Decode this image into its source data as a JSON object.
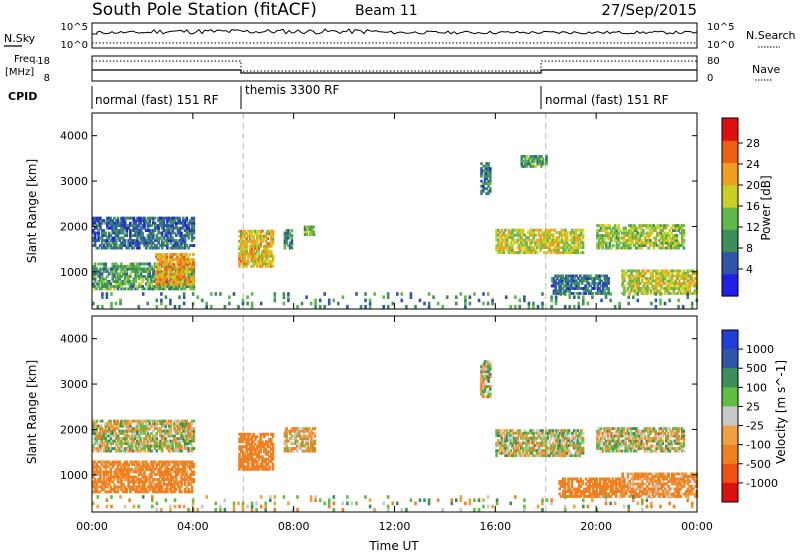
{
  "header": {
    "title": "South Pole Station (fitACF)",
    "beam": "Beam 11",
    "date": "27/Sep/2015"
  },
  "nsky_panel": {
    "left_label": "N.Sky",
    "right_label": "N.Search",
    "left_ticks": [
      "10^5",
      "10^0"
    ],
    "right_ticks": [
      "10^5",
      "10^0"
    ]
  },
  "freq_panel": {
    "left_label_line1": "Freq.",
    "left_label_line2": "[MHz]",
    "right_label": "Nave",
    "left_ticks": [
      "18",
      "8"
    ],
    "right_ticks": [
      "80",
      "0"
    ]
  },
  "cpid": {
    "label": "CPID",
    "segments": [
      {
        "text": "normal (fast) 151 RF",
        "start_hour": 0,
        "end_hour": 6
      },
      {
        "text": "themis 3300 RF",
        "start_hour": 6,
        "end_hour": 18
      },
      {
        "text": "normal (fast) 151 RF",
        "start_hour": 18,
        "end_hour": 24
      }
    ]
  },
  "colors": {
    "power_scale": [
      "#1f1fe6",
      "#2f56a8",
      "#3c8f5a",
      "#5fb84a",
      "#c8d020",
      "#f0a020",
      "#f06010",
      "#e01010"
    ],
    "velocity_scale": [
      "#e01010",
      "#f05010",
      "#f08020",
      "#f0a040",
      "#c8c8c8",
      "#5fc040",
      "#3c8f5a",
      "#2f56a8",
      "#1f3fd8"
    ]
  },
  "chart_data": [
    {
      "type": "heatmap",
      "panel": "power",
      "ylabel": "Slant Range [km]",
      "ylim": [
        180,
        4500
      ],
      "yticks": [
        "1000",
        "2000",
        "3000",
        "4000"
      ],
      "xlim": [
        0,
        24
      ],
      "colorbar_label": "Power [dB]",
      "colorbar_ticks": [
        "28",
        "24",
        "20",
        "16",
        "12",
        "8",
        "4"
      ],
      "regions": [
        {
          "t": [
            0.0,
            4.0
          ],
          "r": [
            600,
            1200
          ],
          "v": 14
        },
        {
          "t": [
            0.0,
            4.0
          ],
          "r": [
            1500,
            2200
          ],
          "v": 9
        },
        {
          "t": [
            2.5,
            4.0
          ],
          "r": [
            700,
            1400
          ],
          "v": 24
        },
        {
          "t": [
            5.8,
            7.2
          ],
          "r": [
            1100,
            1900
          ],
          "v": 22
        },
        {
          "t": [
            7.6,
            7.9
          ],
          "r": [
            1500,
            1900
          ],
          "v": 12
        },
        {
          "t": [
            8.4,
            8.8
          ],
          "r": [
            1800,
            2000
          ],
          "v": 14
        },
        {
          "t": [
            15.4,
            15.8
          ],
          "r": [
            2700,
            3400
          ],
          "v": 10
        },
        {
          "t": [
            16.0,
            19.5
          ],
          "r": [
            1400,
            1900
          ],
          "v": 20
        },
        {
          "t": [
            17.0,
            18.0
          ],
          "r": [
            3300,
            3550
          ],
          "v": 14
        },
        {
          "t": [
            20.0,
            23.5
          ],
          "r": [
            1500,
            2000
          ],
          "v": 18
        },
        {
          "t": [
            18.2,
            20.5
          ],
          "r": [
            500,
            900
          ],
          "v": 10
        },
        {
          "t": [
            21.0,
            24.0
          ],
          "r": [
            500,
            1000
          ],
          "v": 20
        },
        {
          "t": [
            0.0,
            24.0
          ],
          "r": [
            200,
            500
          ],
          "v": 12
        }
      ]
    },
    {
      "type": "heatmap",
      "panel": "velocity",
      "ylabel": "Slant Range [km]",
      "ylim": [
        180,
        4500
      ],
      "yticks": [
        "1000",
        "2000",
        "3000",
        "4000"
      ],
      "xlim": [
        0,
        24
      ],
      "xlabel": "Time UT",
      "xticks": [
        "00:00",
        "04:00",
        "08:00",
        "12:00",
        "16:00",
        "20:00",
        "00:00"
      ],
      "colorbar_label": "Velocity [m s^-1]",
      "colorbar_ticks": [
        "1000",
        "500",
        "100",
        "25",
        "-25",
        "-100",
        "-500",
        "-1000"
      ],
      "regions": [
        {
          "t": [
            0.0,
            4.0
          ],
          "r": [
            600,
            1300
          ],
          "v": -200
        },
        {
          "t": [
            0.0,
            4.0
          ],
          "r": [
            1500,
            2200
          ],
          "v": 0
        },
        {
          "t": [
            5.8,
            7.2
          ],
          "r": [
            1100,
            1900
          ],
          "v": -300
        },
        {
          "t": [
            7.6,
            8.8
          ],
          "r": [
            1500,
            2000
          ],
          "v": -80
        },
        {
          "t": [
            15.4,
            15.8
          ],
          "r": [
            2700,
            3500
          ],
          "v": 0
        },
        {
          "t": [
            16.0,
            19.5
          ],
          "r": [
            1400,
            2000
          ],
          "v": 0
        },
        {
          "t": [
            20.0,
            23.5
          ],
          "r": [
            1500,
            2000
          ],
          "v": 0
        },
        {
          "t": [
            18.5,
            21.0
          ],
          "r": [
            500,
            900
          ],
          "v": -250
        },
        {
          "t": [
            21.0,
            24.0
          ],
          "r": [
            500,
            1000
          ],
          "v": -150
        },
        {
          "t": [
            0.0,
            24.0
          ],
          "r": [
            200,
            500
          ],
          "v": 0
        }
      ]
    }
  ]
}
